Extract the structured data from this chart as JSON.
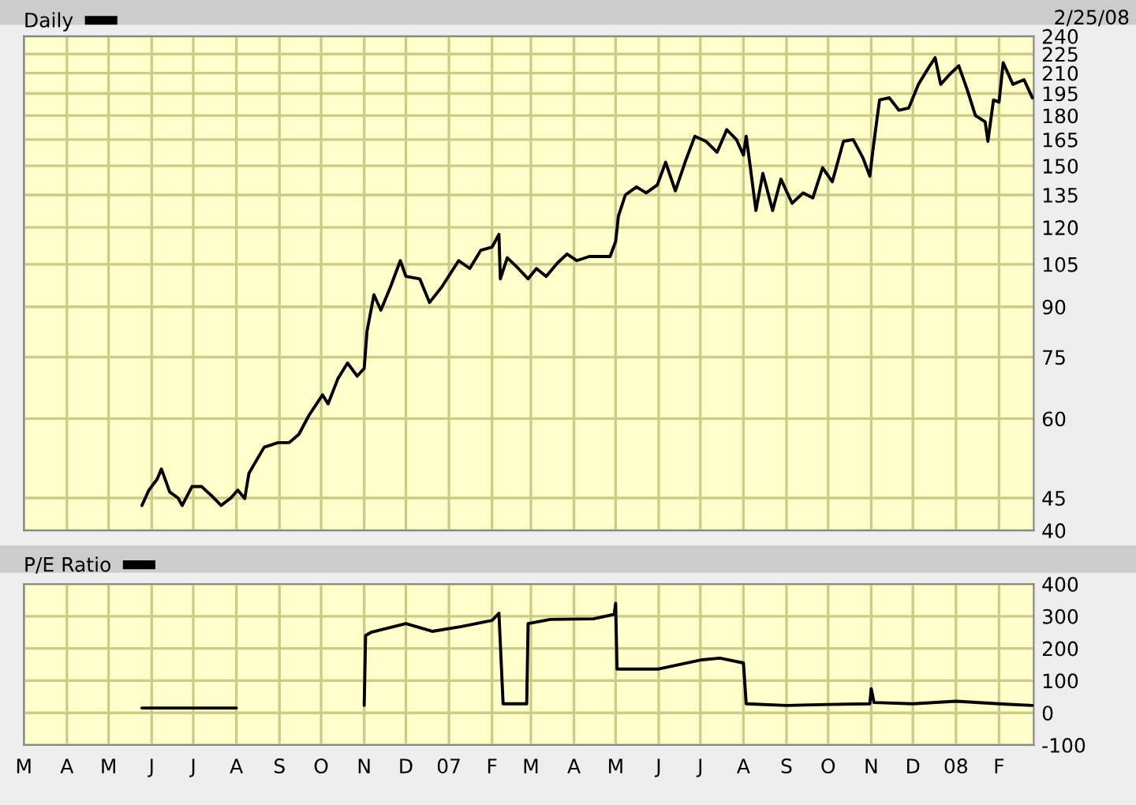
{
  "chart_data": [
    {
      "type": "line",
      "log": "y",
      "legend": "top left",
      "tick_labels": "y",
      "grid": true,
      "annotations": [
        "2/25/08"
      ],
      "xlim": [
        "2006-03-01",
        "2008-02-26"
      ],
      "ylim": [
        40,
        240
      ],
      "yticks": [
        40,
        45,
        60,
        75,
        90,
        105,
        120,
        135,
        150,
        165,
        180,
        195,
        210,
        225,
        240
      ],
      "xticks": [
        {
          "value": "2006-03-01",
          "label": null
        },
        {
          "value": "2006-04-01",
          "label": null
        },
        {
          "value": "2006-05-01",
          "label": null
        },
        {
          "value": "2006-06-01",
          "label": null
        },
        {
          "value": "2006-07-01",
          "label": null
        },
        {
          "value": "2006-08-01",
          "label": null
        },
        {
          "value": "2006-09-01",
          "label": null
        },
        {
          "value": "2006-10-01",
          "label": null
        },
        {
          "value": "2006-11-01",
          "label": null
        },
        {
          "value": "2006-12-01",
          "label": null
        },
        {
          "value": "2007-01-01",
          "label": null
        },
        {
          "value": "2007-02-01",
          "label": null
        },
        {
          "value": "2007-03-01",
          "label": null
        },
        {
          "value": "2007-04-01",
          "label": null
        },
        {
          "value": "2007-05-01",
          "label": null
        },
        {
          "value": "2007-06-01",
          "label": null
        },
        {
          "value": "2007-07-01",
          "label": null
        },
        {
          "value": "2007-08-01",
          "label": null
        },
        {
          "value": "2007-09-01",
          "label": null
        },
        {
          "value": "2007-10-01",
          "label": null
        },
        {
          "value": "2007-11-01",
          "label": null
        },
        {
          "value": "2007-12-01",
          "label": null
        },
        {
          "value": "2008-01-01",
          "label": null
        },
        {
          "value": "2008-02-01",
          "label": null
        }
      ],
      "series": [
        {
          "name": "Daily",
          "color": "#000000",
          "x": [
            "2006-05-25",
            "2006-05-30",
            "2006-06-05",
            "2006-06-08",
            "2006-06-14",
            "2006-06-20",
            "2006-06-23",
            "2006-06-30",
            "2006-07-07",
            "2006-07-14",
            "2006-07-21",
            "2006-07-28",
            "2006-08-02",
            "2006-08-07",
            "2006-08-10",
            "2006-08-21",
            "2006-08-31",
            "2006-09-08",
            "2006-09-15",
            "2006-09-22",
            "2006-10-02",
            "2006-10-06",
            "2006-10-13",
            "2006-10-20",
            "2006-10-27",
            "2006-11-01",
            "2006-11-03",
            "2006-11-08",
            "2006-11-13",
            "2006-11-20",
            "2006-11-27",
            "2006-12-01",
            "2006-12-11",
            "2006-12-18",
            "2006-12-27",
            "2007-01-08",
            "2007-01-16",
            "2007-01-24",
            "2007-02-01",
            "2007-02-06",
            "2007-02-07",
            "2007-02-12",
            "2007-02-20",
            "2007-02-27",
            "2007-03-05",
            "2007-03-12",
            "2007-03-20",
            "2007-03-27",
            "2007-04-03",
            "2007-04-12",
            "2007-04-20",
            "2007-04-27",
            "2007-05-01",
            "2007-05-03",
            "2007-05-08",
            "2007-05-16",
            "2007-05-23",
            "2007-05-31",
            "2007-06-06",
            "2007-06-13",
            "2007-06-20",
            "2007-06-27",
            "2007-07-05",
            "2007-07-13",
            "2007-07-20",
            "2007-07-27",
            "2007-08-01",
            "2007-08-03",
            "2007-08-06",
            "2007-08-10",
            "2007-08-15",
            "2007-08-22",
            "2007-08-28",
            "2007-09-05",
            "2007-09-13",
            "2007-09-20",
            "2007-09-27",
            "2007-10-04",
            "2007-10-12",
            "2007-10-19",
            "2007-10-26",
            "2007-10-31",
            "2007-11-02",
            "2007-11-05",
            "2007-11-07",
            "2007-11-14",
            "2007-11-21",
            "2007-11-28",
            "2007-12-05",
            "2007-12-12",
            "2007-12-17",
            "2007-12-21",
            "2007-12-28",
            "2008-01-03",
            "2008-01-09",
            "2008-01-15",
            "2008-01-22",
            "2008-01-24",
            "2008-01-28",
            "2008-02-01",
            "2008-02-04",
            "2008-02-11",
            "2008-02-19",
            "2008-02-25"
          ],
          "values": [
            43.8,
            46.3,
            48.2,
            50,
            46,
            45,
            43.8,
            46.9,
            46.9,
            45.4,
            43.8,
            45,
            46.3,
            44.9,
            49.2,
            54.1,
            55,
            55,
            56.7,
            60.6,
            65.4,
            63.3,
            69.3,
            73.4,
            70,
            72,
            82.3,
            94,
            88.9,
            96.8,
            106.4,
            100.5,
            99.6,
            91.4,
            96.8,
            106.4,
            103.4,
            110.5,
            111.7,
            117,
            99.6,
            107.5,
            103.4,
            99.6,
            103.4,
            100.5,
            105.4,
            109,
            106.4,
            108,
            108,
            108,
            114,
            125,
            135,
            139,
            136,
            140,
            152,
            137,
            152,
            167,
            164,
            157.6,
            171,
            165,
            156,
            167,
            149,
            127.6,
            146,
            127.6,
            143,
            131,
            136,
            133.6,
            149,
            141.6,
            164,
            165,
            154.5,
            144.5,
            157.6,
            176.7,
            190.5,
            192,
            183.5,
            185,
            201.6,
            213.6,
            222,
            201.6,
            209.6,
            215.6,
            198,
            180,
            176,
            164,
            190.5,
            189,
            218,
            201.6,
            205,
            192
          ]
        }
      ]
    },
    {
      "type": "line",
      "legend": "top left",
      "grid": true,
      "xlim": [
        "2006-03-01",
        "2008-02-26"
      ],
      "ylim": [
        -100,
        400
      ],
      "yticks": [
        -100,
        0,
        100,
        200,
        300,
        400
      ],
      "xticks": [
        {
          "value": "2006-03-01",
          "label": "M"
        },
        {
          "value": "2006-04-01",
          "label": "A"
        },
        {
          "value": "2006-05-01",
          "label": "M"
        },
        {
          "value": "2006-06-01",
          "label": "J"
        },
        {
          "value": "2006-07-01",
          "label": "J"
        },
        {
          "value": "2006-08-01",
          "label": "A"
        },
        {
          "value": "2006-09-01",
          "label": "S"
        },
        {
          "value": "2006-10-01",
          "label": "O"
        },
        {
          "value": "2006-11-01",
          "label": "N"
        },
        {
          "value": "2006-12-01",
          "label": "D"
        },
        {
          "value": "2007-01-01",
          "label": "07"
        },
        {
          "value": "2007-02-01",
          "label": "F"
        },
        {
          "value": "2007-03-01",
          "label": "M"
        },
        {
          "value": "2007-04-01",
          "label": "A"
        },
        {
          "value": "2007-05-01",
          "label": "M"
        },
        {
          "value": "2007-06-01",
          "label": "J"
        },
        {
          "value": "2007-07-01",
          "label": "J"
        },
        {
          "value": "2007-08-01",
          "label": "A"
        },
        {
          "value": "2007-09-01",
          "label": "S"
        },
        {
          "value": "2007-10-01",
          "label": "O"
        },
        {
          "value": "2007-11-01",
          "label": "N"
        },
        {
          "value": "2007-12-01",
          "label": "D"
        },
        {
          "value": "2008-01-01",
          "label": "08"
        },
        {
          "value": "2008-02-01",
          "label": "F"
        }
      ],
      "series": [
        {
          "name": "P/E Ratio",
          "color": "#000000",
          "x": [
            "2006-05-25",
            "2006-08-01",
            "2006-09-15",
            "2006-11-01",
            "2006-11-02",
            "2006-11-06",
            "2006-12-01",
            "2006-12-20",
            "2007-01-10",
            "2007-02-01",
            "2007-02-06",
            "2007-02-09",
            "2007-02-26",
            "2007-02-27",
            "2007-03-15",
            "2007-04-15",
            "2007-04-30",
            "2007-05-01",
            "2007-05-02",
            "2007-06-01",
            "2007-06-15",
            "2007-07-01",
            "2007-07-15",
            "2007-08-01",
            "2007-08-03",
            "2007-09-01",
            "2007-10-01",
            "2007-10-31",
            "2007-11-01",
            "2007-11-03",
            "2007-12-01",
            "2008-01-01",
            "2008-02-01",
            "2008-02-25"
          ],
          "values": [
            15,
            15,
            null,
            23,
            240,
            250,
            277,
            253,
            268,
            287,
            309,
            28,
            28,
            277,
            290,
            292,
            306,
            340,
            136,
            136,
            149,
            164,
            170,
            155,
            28,
            23,
            26,
            28,
            75,
            32,
            28,
            36,
            28,
            23
          ]
        }
      ]
    }
  ]
}
